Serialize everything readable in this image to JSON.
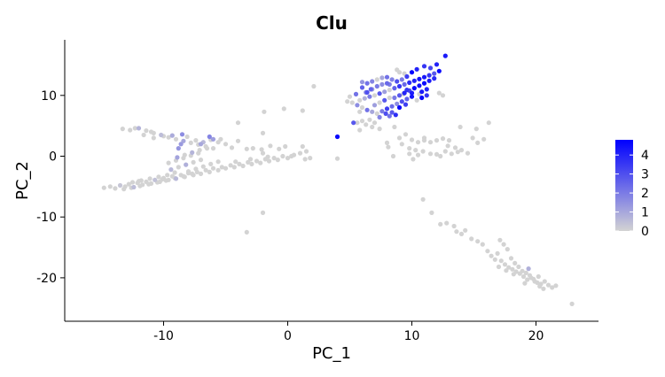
{
  "chart_data": {
    "type": "scatter",
    "title": "Clu",
    "xlabel": "PC_1",
    "ylabel": "PC_2",
    "xlim": [
      -18,
      25
    ],
    "ylim": [
      -27,
      19
    ],
    "x_ticks": [
      -10,
      0,
      10,
      20
    ],
    "x_tick_labels": [
      "-10",
      "0",
      "10",
      "20"
    ],
    "y_ticks": [
      -20,
      -10,
      0,
      10
    ],
    "y_tick_labels": [
      "-20",
      "-10",
      "0",
      "10"
    ],
    "grid": false,
    "legend": {
      "placement": "right",
      "type": "color-gradient",
      "low_color": "#d3d3d3",
      "high_color": "#0000ff",
      "range": [
        0,
        4.8
      ],
      "ticks": [
        0,
        1,
        2,
        3,
        4
      ],
      "tick_labels": [
        "0",
        "1",
        "2",
        "3",
        "4"
      ]
    },
    "points": [
      [
        -14.8,
        -5.2,
        0
      ],
      [
        -14.3,
        -5.0,
        0
      ],
      [
        -13.9,
        -5.3,
        0
      ],
      [
        -13.5,
        -4.8,
        0.3
      ],
      [
        -13.1,
        -5.0,
        0
      ],
      [
        -12.8,
        -4.6,
        0
      ],
      [
        -12.4,
        -5.1,
        0.5
      ],
      [
        -12.1,
        -4.4,
        0
      ],
      [
        -11.7,
        -4.7,
        0
      ],
      [
        -11.4,
        -4.2,
        0
      ],
      [
        -11.0,
        -4.5,
        0
      ],
      [
        -10.7,
        -3.9,
        0.4
      ],
      [
        -10.3,
        -4.2,
        0
      ],
      [
        -10.0,
        -3.6,
        0
      ],
      [
        -9.6,
        -3.9,
        0
      ],
      [
        -9.3,
        -3.3,
        0
      ],
      [
        -9.0,
        -3.7,
        0.6
      ],
      [
        -8.6,
        -3.1,
        0
      ],
      [
        -8.3,
        -3.4,
        0
      ],
      [
        -8.0,
        -2.8,
        0
      ],
      [
        -7.6,
        -3.1,
        0
      ],
      [
        -7.3,
        -2.6,
        0
      ],
      [
        -7.0,
        -2.9,
        0
      ],
      [
        -6.6,
        -2.3,
        0
      ],
      [
        -6.3,
        -2.6,
        0
      ],
      [
        -6.0,
        -2.0,
        0
      ],
      [
        -5.6,
        -2.3,
        0
      ],
      [
        -5.3,
        -1.8,
        0
      ],
      [
        -5.0,
        -2.0,
        0
      ],
      [
        -4.6,
        -1.5,
        0
      ],
      [
        -4.3,
        -1.8,
        0
      ],
      [
        -3.9,
        -1.3,
        0
      ],
      [
        -3.6,
        -1.6,
        0
      ],
      [
        -3.2,
        -1.0,
        0
      ],
      [
        -2.9,
        -1.3,
        0
      ],
      [
        -2.5,
        -0.8,
        0
      ],
      [
        -2.2,
        -1.1,
        0
      ],
      [
        -1.8,
        -0.5,
        0
      ],
      [
        -1.5,
        -0.8,
        0
      ],
      [
        -1.1,
        -0.3,
        0
      ],
      [
        -0.8,
        -0.6,
        0
      ],
      [
        -0.4,
        0.0,
        0
      ],
      [
        0.0,
        -0.3,
        0
      ],
      [
        0.5,
        0.2,
        0
      ],
      [
        1.0,
        0.5,
        0
      ],
      [
        1.5,
        0.8,
        0
      ],
      [
        -13.2,
        -5.4,
        0
      ],
      [
        -12.6,
        -5.2,
        0
      ],
      [
        -11.9,
        -4.9,
        0
      ],
      [
        -11.2,
        -4.6,
        0
      ],
      [
        -10.5,
        -4.3,
        0
      ],
      [
        -9.8,
        -4.0,
        0
      ],
      [
        -9.1,
        -3.6,
        0
      ],
      [
        -8.4,
        -3.3,
        0
      ],
      [
        -7.7,
        -2.9,
        0
      ],
      [
        -12.5,
        -4.3,
        0
      ],
      [
        -11.8,
        -4.0,
        0
      ],
      [
        -11.1,
        -3.7,
        0
      ],
      [
        -10.4,
        -3.4,
        0
      ],
      [
        -9.7,
        -3.1,
        0
      ],
      [
        -9.4,
        -2.2,
        0.6
      ],
      [
        -8.8,
        -1.8,
        0
      ],
      [
        -8.2,
        -1.4,
        0.8
      ],
      [
        -7.6,
        -1.0,
        0
      ],
      [
        -7.0,
        -0.6,
        0
      ],
      [
        -8.9,
        -0.2,
        1.1
      ],
      [
        -8.3,
        0.2,
        0
      ],
      [
        -7.7,
        0.6,
        0.7
      ],
      [
        -7.1,
        1.0,
        0
      ],
      [
        -6.5,
        1.3,
        0
      ],
      [
        -9.6,
        -1.1,
        0
      ],
      [
        -9.0,
        -0.7,
        0
      ],
      [
        -8.4,
        -0.3,
        0
      ],
      [
        -7.8,
        0.1,
        0
      ],
      [
        -7.2,
        0.5,
        0
      ],
      [
        -8.0,
        -2.5,
        0
      ],
      [
        -7.4,
        -2.1,
        0
      ],
      [
        -6.8,
        -1.7,
        0
      ],
      [
        -6.2,
        -1.3,
        0
      ],
      [
        -5.6,
        -0.9,
        0
      ],
      [
        -12.7,
        4.3,
        0
      ],
      [
        -12.0,
        4.6,
        0.7
      ],
      [
        -11.4,
        4.2,
        0
      ],
      [
        -10.8,
        3.8,
        0
      ],
      [
        -10.2,
        3.5,
        0.5
      ],
      [
        -9.6,
        3.1,
        0
      ],
      [
        -9.0,
        2.8,
        0
      ],
      [
        -8.4,
        2.5,
        1.0
      ],
      [
        -7.8,
        2.2,
        0
      ],
      [
        -7.2,
        1.9,
        0
      ],
      [
        -6.6,
        1.6,
        0
      ],
      [
        -6.0,
        1.3,
        0
      ],
      [
        -11.0,
        4.0,
        0
      ],
      [
        -9.3,
        3.4,
        0.9
      ],
      [
        -8.6,
        2.0,
        1.3
      ],
      [
        -8.1,
        3.2,
        0
      ],
      [
        -7.4,
        2.6,
        0
      ],
      [
        -6.8,
        2.3,
        0.6
      ],
      [
        -6.2,
        2.7,
        0
      ],
      [
        -5.6,
        2.3,
        0
      ],
      [
        -5.0,
        2.0,
        0
      ],
      [
        -4.5,
        1.4,
        0
      ],
      [
        -8.8,
        1.3,
        1.4
      ],
      [
        -8.5,
        3.6,
        1.6
      ],
      [
        -4.0,
        2.5,
        0
      ],
      [
        -3.3,
        1.2,
        0
      ],
      [
        -2.8,
        1.3,
        0
      ],
      [
        -2.1,
        1.1,
        0
      ],
      [
        -1.4,
        1.7,
        0
      ],
      [
        -0.7,
        1.2,
        0
      ],
      [
        -0.2,
        1.6,
        0
      ],
      [
        1.2,
        1.6,
        0
      ],
      [
        1.8,
        -0.3,
        0
      ],
      [
        -2.0,
        0.5,
        0
      ],
      [
        -1.6,
        -0.1,
        0
      ],
      [
        0.3,
        0.0,
        0
      ],
      [
        -3.0,
        -0.5,
        0
      ],
      [
        -4.2,
        -0.9,
        0
      ],
      [
        -13.3,
        4.5,
        0
      ],
      [
        -12.3,
        4.6,
        0
      ],
      [
        -11.6,
        3.5,
        0
      ],
      [
        -10.8,
        3.0,
        0
      ],
      [
        -10.0,
        3.3,
        0
      ],
      [
        -12.0,
        -4.1,
        0
      ],
      [
        -10.1,
        -3.8,
        0
      ],
      [
        -9.1,
        -2.7,
        0
      ],
      [
        -6.0,
        2.8,
        1.2
      ],
      [
        -5.4,
        2.8,
        0
      ],
      [
        -7.0,
        2.0,
        1.0
      ],
      [
        -6.3,
        3.2,
        1.8
      ],
      [
        -2.0,
        3.8,
        0
      ],
      [
        -4.0,
        5.5,
        0
      ],
      [
        -1.9,
        7.3,
        0
      ],
      [
        -0.3,
        7.8,
        0
      ],
      [
        1.2,
        7.5,
        0
      ],
      [
        2.1,
        11.5,
        0
      ],
      [
        1.4,
        -0.5,
        0
      ],
      [
        -2.0,
        -9.3,
        0
      ],
      [
        -3.3,
        -12.5,
        0
      ],
      [
        4.0,
        3.2,
        4.6
      ],
      [
        4.0,
        -0.4,
        0
      ],
      [
        5.5,
        10.2,
        2.2
      ],
      [
        6.0,
        11.3,
        2.6
      ],
      [
        6.4,
        10.5,
        3.0
      ],
      [
        6.8,
        11.0,
        1.2
      ],
      [
        7.2,
        11.5,
        2.0
      ],
      [
        7.6,
        11.8,
        1.6
      ],
      [
        8.0,
        12.0,
        2.4
      ],
      [
        5.8,
        9.2,
        0
      ],
      [
        6.2,
        9.5,
        0.8
      ],
      [
        6.6,
        9.8,
        2.0
      ],
      [
        7.0,
        10.0,
        0
      ],
      [
        7.4,
        10.3,
        2.8
      ],
      [
        7.8,
        10.6,
        1.2
      ],
      [
        8.2,
        10.9,
        0
      ],
      [
        8.6,
        11.2,
        2.6
      ],
      [
        9.0,
        11.5,
        3.6
      ],
      [
        9.4,
        11.8,
        2.4
      ],
      [
        9.8,
        12.1,
        3.8
      ],
      [
        10.2,
        12.4,
        4.0
      ],
      [
        10.6,
        12.7,
        4.4
      ],
      [
        11.0,
        13.0,
        4.2
      ],
      [
        11.4,
        13.3,
        3.6
      ],
      [
        11.8,
        13.6,
        2.8
      ],
      [
        12.2,
        14.0,
        4.6
      ],
      [
        12.7,
        16.5,
        4.2
      ],
      [
        10.0,
        13.8,
        4.8
      ],
      [
        10.4,
        14.3,
        4.0
      ],
      [
        9.6,
        13.1,
        3.4
      ],
      [
        9.2,
        12.6,
        2.0
      ],
      [
        8.8,
        12.3,
        3.0
      ],
      [
        8.4,
        12.6,
        1.8
      ],
      [
        8.0,
        13.0,
        2.2
      ],
      [
        7.6,
        12.9,
        1.0
      ],
      [
        7.2,
        12.6,
        0
      ],
      [
        6.8,
        12.3,
        1.8
      ],
      [
        6.4,
        12.0,
        2.2
      ],
      [
        6.0,
        12.2,
        1.4
      ],
      [
        8.6,
        9.6,
        2.0
      ],
      [
        9.0,
        10.0,
        2.8
      ],
      [
        9.4,
        10.4,
        4.0
      ],
      [
        9.8,
        10.8,
        3.2
      ],
      [
        10.2,
        11.2,
        4.6
      ],
      [
        10.6,
        11.6,
        4.4
      ],
      [
        11.0,
        12.0,
        4.6
      ],
      [
        11.4,
        12.4,
        4.2
      ],
      [
        11.8,
        12.8,
        3.8
      ],
      [
        10.8,
        10.6,
        4.2
      ],
      [
        11.2,
        11.0,
        4.0
      ],
      [
        10.0,
        9.8,
        4.4
      ],
      [
        9.6,
        9.4,
        2.6
      ],
      [
        9.2,
        9.0,
        3.0
      ],
      [
        8.8,
        8.6,
        1.6
      ],
      [
        8.4,
        8.2,
        2.4
      ],
      [
        8.0,
        7.8,
        3.4
      ],
      [
        7.6,
        7.4,
        2.0
      ],
      [
        7.2,
        7.0,
        0
      ],
      [
        6.8,
        7.3,
        1.0
      ],
      [
        6.4,
        7.6,
        2.2
      ],
      [
        7.0,
        8.4,
        1.2
      ],
      [
        7.4,
        8.8,
        0
      ],
      [
        7.8,
        9.2,
        2.8
      ],
      [
        8.2,
        9.6,
        0
      ],
      [
        5.6,
        8.4,
        1.6
      ],
      [
        6.0,
        8.0,
        0
      ],
      [
        5.2,
        8.8,
        0
      ],
      [
        5.8,
        7.3,
        0
      ],
      [
        7.9,
        7.0,
        3.0
      ],
      [
        8.4,
        7.2,
        2.8
      ],
      [
        8.7,
        6.8,
        3.8
      ],
      [
        8.2,
        6.6,
        2.2
      ],
      [
        7.4,
        6.4,
        1.8
      ],
      [
        6.6,
        6.0,
        0
      ],
      [
        6.0,
        5.8,
        0
      ],
      [
        5.6,
        5.5,
        0
      ],
      [
        9.0,
        8.0,
        4.6
      ],
      [
        9.5,
        8.5,
        3.4
      ],
      [
        10.4,
        9.2,
        0
      ],
      [
        10.8,
        9.6,
        4.6
      ],
      [
        11.2,
        10.0,
        3.6
      ],
      [
        12.5,
        10.0,
        0
      ],
      [
        12.2,
        10.4,
        0
      ],
      [
        10.0,
        10.4,
        4.2
      ],
      [
        9.6,
        10.9,
        3.6
      ],
      [
        9.3,
        10.2,
        0
      ],
      [
        10.6,
        10.2,
        0
      ],
      [
        5.8,
        4.3,
        0
      ],
      [
        5.3,
        5.5,
        2.8
      ],
      [
        5.0,
        9.8,
        0
      ],
      [
        4.8,
        9.0,
        0
      ],
      [
        6.3,
        10.5,
        1.6
      ],
      [
        6.7,
        11.0,
        2.6
      ],
      [
        8.2,
        11.8,
        2.0
      ],
      [
        11.5,
        14.5,
        3.2
      ],
      [
        12.0,
        15.1,
        4.0
      ],
      [
        11.0,
        14.8,
        3.6
      ],
      [
        9.4,
        13.6,
        0
      ],
      [
        9.0,
        13.8,
        0
      ],
      [
        8.8,
        14.2,
        0
      ],
      [
        7.4,
        4.5,
        0
      ],
      [
        6.8,
        4.8,
        0
      ],
      [
        6.3,
        5.2,
        0
      ],
      [
        7.0,
        5.5,
        0
      ],
      [
        8.0,
        2.2,
        0
      ],
      [
        9.0,
        3.0,
        0
      ],
      [
        9.5,
        3.6,
        0
      ],
      [
        10.0,
        2.7,
        0
      ],
      [
        10.5,
        2.3,
        0
      ],
      [
        11.0,
        2.6,
        0
      ],
      [
        11.5,
        2.3,
        0
      ],
      [
        12.0,
        2.6,
        0
      ],
      [
        12.5,
        2.9,
        0
      ],
      [
        13.0,
        2.6,
        0
      ],
      [
        13.5,
        1.4,
        0
      ],
      [
        14.0,
        1.0,
        0
      ],
      [
        14.5,
        0.5,
        0
      ],
      [
        14.9,
        3.0,
        0
      ],
      [
        15.3,
        2.2,
        0
      ],
      [
        15.8,
        2.8,
        0
      ],
      [
        16.2,
        5.5,
        0
      ],
      [
        12.0,
        0.3,
        0
      ],
      [
        12.7,
        0.8,
        0
      ],
      [
        13.2,
        0.4,
        0
      ],
      [
        13.7,
        0.7,
        0
      ],
      [
        11.5,
        0.4,
        0
      ],
      [
        10.9,
        0.8,
        0
      ],
      [
        10.3,
        1.0,
        0
      ],
      [
        9.8,
        1.3,
        0
      ],
      [
        9.8,
        0.4,
        0
      ],
      [
        9.2,
        2.0,
        0
      ],
      [
        8.6,
        4.8,
        0
      ],
      [
        8.1,
        1.5,
        0
      ],
      [
        8.5,
        0.0,
        0
      ],
      [
        10.1,
        -0.5,
        0
      ],
      [
        10.5,
        0.2,
        0
      ],
      [
        12.3,
        0.0,
        0
      ],
      [
        11.0,
        3.0,
        0
      ],
      [
        13.9,
        4.8,
        0
      ],
      [
        15.2,
        4.5,
        0
      ],
      [
        12.9,
        1.7,
        0
      ],
      [
        10.9,
        -7.1,
        0
      ],
      [
        11.6,
        -9.3,
        0
      ],
      [
        12.3,
        -11.2,
        0
      ],
      [
        12.8,
        -11.0,
        0
      ],
      [
        13.4,
        -11.5,
        0
      ],
      [
        13.6,
        -12.4,
        0
      ],
      [
        14.0,
        -12.8,
        0
      ],
      [
        14.3,
        -12.2,
        0
      ],
      [
        14.8,
        -13.6,
        0
      ],
      [
        15.3,
        -14.0,
        0
      ],
      [
        15.7,
        -14.5,
        0
      ],
      [
        16.1,
        -15.6,
        0
      ],
      [
        16.4,
        -16.4,
        0
      ],
      [
        16.7,
        -17.0,
        0
      ],
      [
        17.1,
        -13.8,
        0
      ],
      [
        17.4,
        -14.5,
        0
      ],
      [
        17.7,
        -15.3,
        0
      ],
      [
        18.0,
        -16.8,
        0
      ],
      [
        18.3,
        -17.6,
        0
      ],
      [
        18.6,
        -18.2,
        0
      ],
      [
        18.9,
        -18.9,
        0
      ],
      [
        19.2,
        -19.2,
        0
      ],
      [
        19.5,
        -19.6,
        0
      ],
      [
        19.8,
        -20.2,
        0
      ],
      [
        20.1,
        -20.8,
        0
      ],
      [
        20.4,
        -21.0,
        0
      ],
      [
        20.7,
        -20.6,
        0
      ],
      [
        21.0,
        -21.2,
        0
      ],
      [
        21.3,
        -21.6,
        0
      ],
      [
        21.6,
        -21.3,
        0
      ],
      [
        17.2,
        -17.2,
        0
      ],
      [
        17.5,
        -17.8,
        0
      ],
      [
        17.8,
        -18.3,
        0
      ],
      [
        18.1,
        -18.6,
        0
      ],
      [
        18.4,
        -19.0,
        0
      ],
      [
        18.7,
        -19.3,
        0
      ],
      [
        19.0,
        -19.8,
        0
      ],
      [
        19.3,
        -20.3,
        0
      ],
      [
        19.6,
        -20.0,
        0
      ],
      [
        19.9,
        -20.6,
        0
      ],
      [
        20.3,
        -21.4,
        0
      ],
      [
        20.6,
        -21.8,
        0
      ],
      [
        17.0,
        -18.2,
        0
      ],
      [
        17.6,
        -18.8,
        0
      ],
      [
        18.2,
        -19.4,
        0
      ],
      [
        19.4,
        -18.5,
        0.8
      ],
      [
        20.2,
        -19.8,
        0
      ],
      [
        16.9,
        -16.0,
        0
      ],
      [
        22.9,
        -24.3,
        0
      ],
      [
        19.1,
        -20.9,
        0
      ]
    ]
  }
}
